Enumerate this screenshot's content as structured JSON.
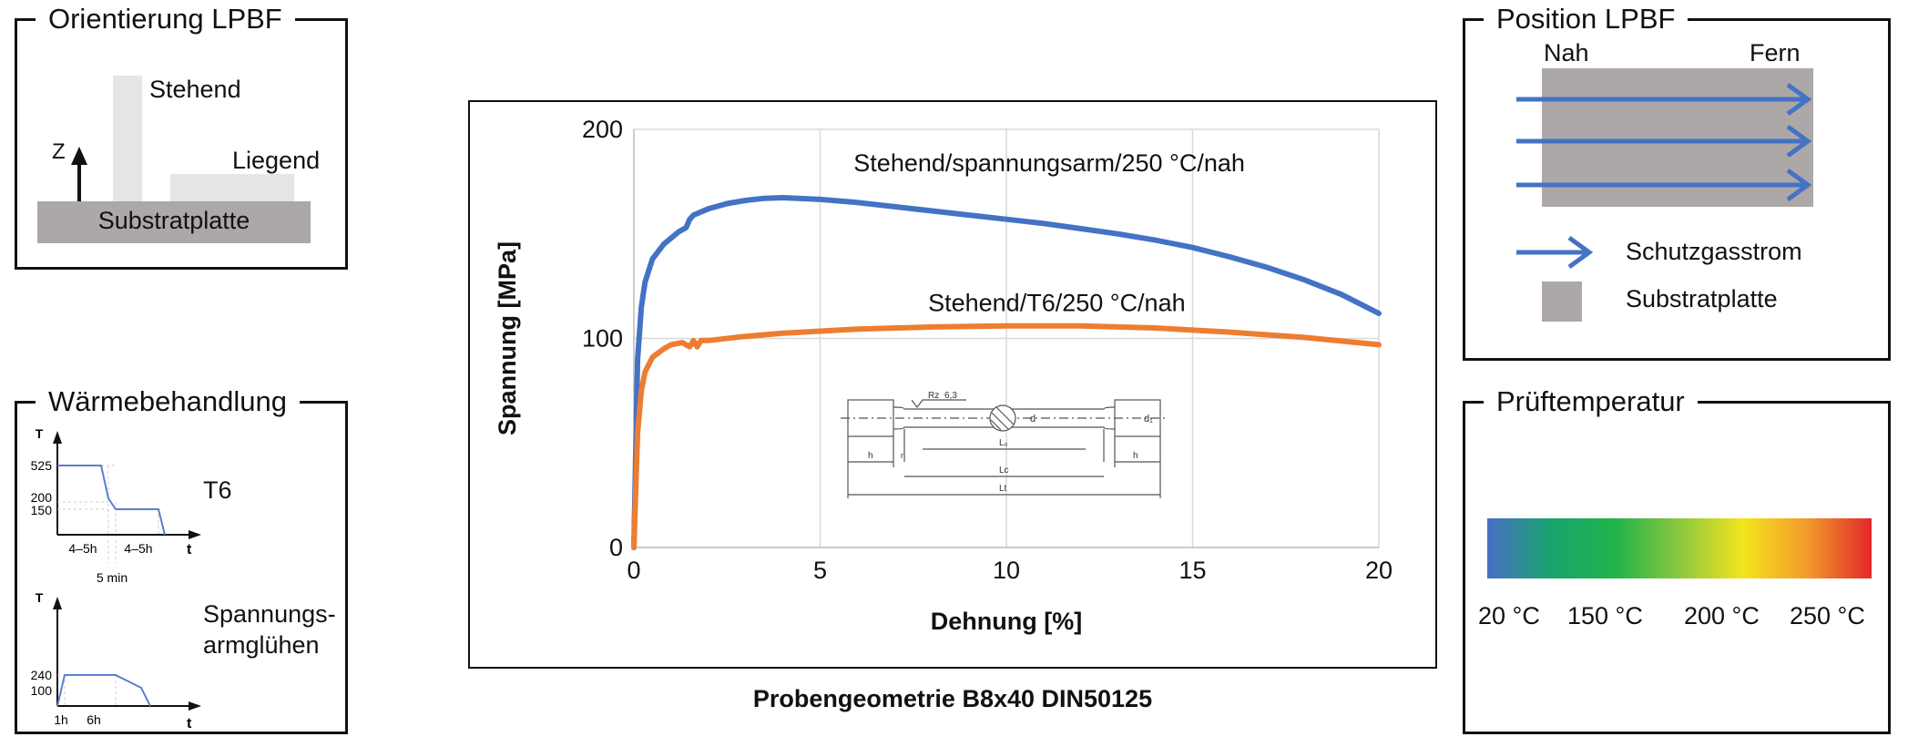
{
  "orientierung": {
    "title": "Orientierung LPBF",
    "stehend": "Stehend",
    "liegend": "Liegend",
    "z_axis": "Z",
    "substrat": "Substratplatte"
  },
  "waerme": {
    "title": "Wärmebehandlung",
    "t6": {
      "label": "T6",
      "y_axis": "T",
      "x_axis": "t",
      "ticks": [
        "525",
        "200",
        "150"
      ],
      "x_labels": [
        "4–5h",
        "4–5h"
      ],
      "note": "5 min"
    },
    "spann": {
      "label_line1": "Spannungs-",
      "label_line2": "armglühen",
      "y_axis": "T",
      "x_axis": "t",
      "ticks": [
        "240",
        "100"
      ],
      "x_labels": [
        "1h",
        "6h"
      ]
    }
  },
  "chart_data": {
    "type": "line",
    "xlabel": "Dehnung [%]",
    "ylabel": "Spannung [MPa]",
    "xlim": [
      0,
      20
    ],
    "ylim": [
      0,
      200
    ],
    "x_ticks": [
      0,
      5,
      10,
      15,
      20
    ],
    "y_ticks": [
      0,
      100,
      200
    ],
    "grid": "vertical",
    "series": [
      {
        "name": "Stehend/spannungsarm/250 °C/nah",
        "color": "#4472c4",
        "x": [
          0,
          0.1,
          0.2,
          0.3,
          0.5,
          0.8,
          1.0,
          1.2,
          1.4,
          1.5,
          1.6,
          2.0,
          2.5,
          3.0,
          3.5,
          4.0,
          5.0,
          6.0,
          7.0,
          8.0,
          9.0,
          10.0,
          11.0,
          12.0,
          13.0,
          14.0,
          15.0,
          16.0,
          17.0,
          18.0,
          19.0,
          20.0
        ],
        "y": [
          0,
          90,
          115,
          127,
          138,
          145,
          148,
          151,
          153,
          157,
          159,
          162,
          164.5,
          166,
          167,
          167.3,
          166.5,
          165,
          163,
          161,
          159,
          157,
          155,
          152.5,
          150,
          147,
          143.5,
          139,
          134,
          128,
          121,
          112
        ]
      },
      {
        "name": "Stehend/T6/250 °C/nah",
        "color": "#ed7d31",
        "x": [
          0,
          0.1,
          0.2,
          0.3,
          0.5,
          0.8,
          1.0,
          1.3,
          1.5,
          1.6,
          1.7,
          1.8,
          2.0,
          3.0,
          4.0,
          5.0,
          6.0,
          8.0,
          10.0,
          12.0,
          14.0,
          16.0,
          18.0,
          20.0
        ],
        "y": [
          0,
          55,
          75,
          84,
          91,
          95,
          97,
          98,
          96,
          99,
          96,
          99,
          99,
          101,
          102.5,
          103.5,
          104.5,
          105.5,
          106,
          106,
          105,
          103,
          100.5,
          97
        ]
      }
    ]
  },
  "specimen": {
    "rz": "Rz",
    "rz_val": "6,3",
    "h": "h",
    "l0": "L₀",
    "lc": "Lc",
    "lt": "Lt",
    "d": "d",
    "d1": "d₁",
    "r": "r"
  },
  "caption": "Probengeometrie B8x40 DIN50125",
  "position": {
    "title": "Position LPBF",
    "nah": "Nah",
    "fern": "Fern",
    "legend_flow": "Schutzgasstrom",
    "legend_plate": "Substratplatte",
    "arrow_color": "#4472c4",
    "plate_color": "#aba8a7"
  },
  "temperatur": {
    "title": "Prüftemperatur",
    "labels": [
      "20 °C",
      "150 °C",
      "200 °C",
      "250 °C"
    ],
    "gradient": [
      "#4a6fc6",
      "#17a56e",
      "#22b34a",
      "#8bc83f",
      "#f4e41d",
      "#f19a2b",
      "#e3262a"
    ]
  }
}
